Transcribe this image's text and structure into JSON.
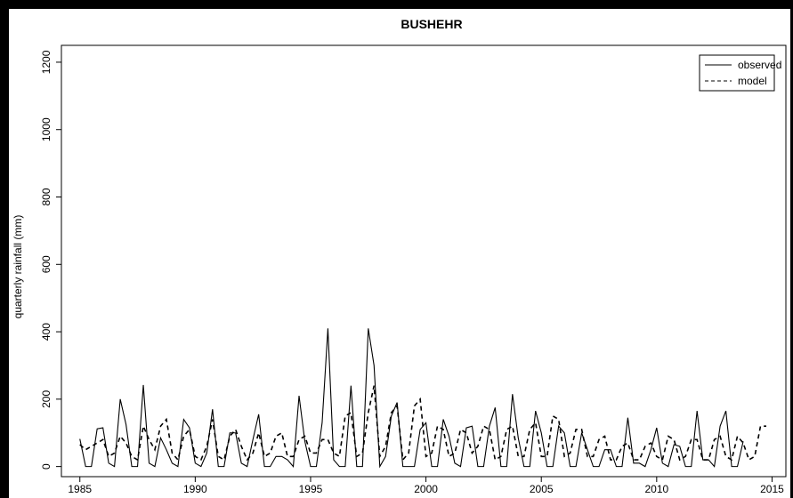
{
  "chart_data": {
    "type": "line",
    "title": "BUSHEHR",
    "xlabel": "",
    "ylabel": "quarterly rainfall (mm)",
    "xlim": [
      1984.2,
      2015.6
    ],
    "ylim": [
      -30,
      1250
    ],
    "x_ticks": [
      1985,
      1990,
      1995,
      2000,
      2005,
      2010,
      2015
    ],
    "y_ticks": [
      0,
      200,
      400,
      600,
      800,
      1000,
      1200
    ],
    "x_start": 1985.0,
    "x_step": 0.25,
    "legend": {
      "position": "top-right"
    },
    "series": [
      {
        "name": "observed",
        "style": "solid",
        "values": [
          82,
          0,
          0,
          112,
          115,
          10,
          0,
          200,
          125,
          0,
          0,
          242,
          10,
          0,
          85,
          50,
          10,
          0,
          140,
          115,
          10,
          0,
          40,
          170,
          0,
          0,
          100,
          100,
          10,
          0,
          80,
          155,
          0,
          0,
          30,
          30,
          20,
          0,
          210,
          75,
          0,
          0,
          130,
          410,
          20,
          0,
          0,
          240,
          0,
          0,
          410,
          300,
          0,
          30,
          150,
          190,
          0,
          0,
          0,
          110,
          130,
          0,
          0,
          140,
          90,
          10,
          0,
          115,
          120,
          0,
          0,
          120,
          175,
          0,
          0,
          215,
          85,
          0,
          0,
          165,
          100,
          0,
          0,
          120,
          100,
          0,
          0,
          100,
          50,
          0,
          0,
          50,
          50,
          0,
          0,
          145,
          10,
          10,
          0,
          50,
          115,
          10,
          0,
          65,
          60,
          0,
          0,
          165,
          20,
          20,
          0,
          120,
          165,
          0,
          0,
          75
        ]
      },
      {
        "name": "model",
        "style": "dashed",
        "values": [
          65,
          50,
          60,
          70,
          80,
          30,
          40,
          90,
          70,
          30,
          20,
          120,
          80,
          50,
          120,
          140,
          40,
          20,
          90,
          110,
          30,
          20,
          60,
          140,
          30,
          20,
          90,
          110,
          60,
          20,
          40,
          100,
          30,
          40,
          90,
          100,
          30,
          30,
          80,
          90,
          40,
          40,
          80,
          80,
          40,
          30,
          150,
          160,
          30,
          40,
          160,
          240,
          30,
          60,
          160,
          180,
          20,
          40,
          180,
          200,
          30,
          40,
          120,
          110,
          30,
          40,
          110,
          100,
          40,
          60,
          120,
          110,
          20,
          30,
          110,
          120,
          30,
          30,
          110,
          130,
          30,
          30,
          150,
          140,
          30,
          40,
          110,
          110,
          30,
          30,
          80,
          90,
          20,
          20,
          60,
          70,
          20,
          20,
          60,
          70,
          30,
          20,
          90,
          80,
          20,
          30,
          80,
          80,
          20,
          20,
          80,
          90,
          30,
          20,
          90,
          70,
          20,
          30,
          120,
          120
        ]
      }
    ]
  }
}
